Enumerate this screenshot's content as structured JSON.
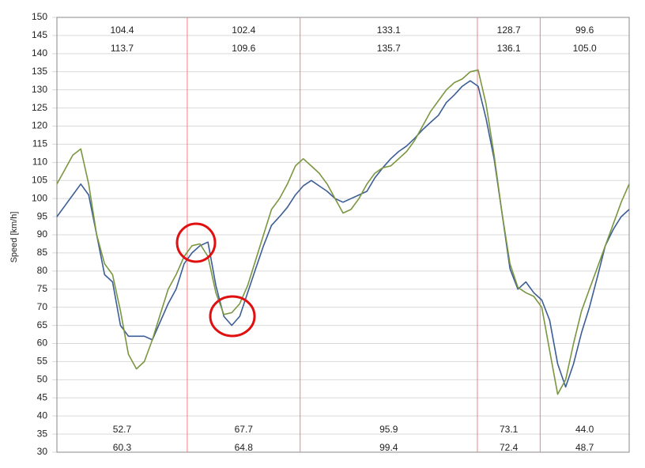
{
  "chart_data": {
    "type": "line",
    "y_label": "Speed [km/h]",
    "ylim": [
      30,
      150
    ],
    "yticks": [
      30,
      35,
      40,
      45,
      50,
      55,
      60,
      65,
      70,
      75,
      80,
      85,
      90,
      95,
      100,
      105,
      110,
      115,
      120,
      125,
      130,
      135,
      140,
      145,
      150
    ],
    "grid": true,
    "series": [
      {
        "color": "#3b5e96",
        "values": [
          95,
          98,
          101,
          104,
          101,
          90,
          79,
          77,
          65,
          62,
          62,
          62,
          61,
          66,
          71,
          75,
          82,
          85,
          87,
          88,
          76,
          67.5,
          65,
          67.5,
          74,
          80.6,
          87,
          92.6,
          95,
          97.6,
          101,
          103.5,
          105,
          103.5,
          102,
          100,
          99,
          100,
          101,
          102,
          105.7,
          108.5,
          111,
          113,
          114.5,
          116.6,
          119,
          121,
          123,
          126.5,
          128.6,
          131,
          132.5,
          131,
          122,
          111,
          96,
          80.6,
          75,
          77,
          74,
          72,
          66.4,
          54.4,
          48,
          54.4,
          63,
          70,
          78.4,
          87,
          91.5,
          95,
          97
        ]
      },
      {
        "color": "#7b9640",
        "values": [
          104,
          108,
          112,
          113.7,
          104,
          90,
          82,
          79,
          69,
          57,
          53,
          55,
          61,
          68,
          75,
          79,
          84,
          87,
          87.5,
          84,
          74,
          68,
          68.5,
          71,
          76,
          83,
          90,
          97,
          100,
          104,
          109,
          111,
          109,
          107,
          104,
          100,
          96,
          97,
          100,
          104,
          107,
          108.5,
          109,
          111,
          113,
          116,
          120,
          124,
          127,
          130,
          132,
          133,
          135,
          135.5,
          126,
          112,
          96,
          82,
          75.5,
          74,
          73,
          70,
          58,
          46,
          50,
          60,
          69,
          75,
          81,
          87,
          93,
          99,
          104
        ]
      }
    ],
    "section_bounds": [
      16.4,
      30.6,
      52.9,
      60.8
    ],
    "section_stats": [
      {
        "color": "#3b5e96",
        "values": [
          104.4,
          102.4,
          133.1,
          128.7,
          99.6
        ]
      },
      {
        "color": "#7b9640",
        "values": [
          113.7,
          109.6,
          135.7,
          136.1,
          105.0
        ],
        "value_labels": [
          "113.7",
          "109.6",
          "135.7",
          "136.1",
          "105.0"
        ]
      },
      {
        "color": "#7b9640",
        "values": [
          52.7,
          67.7,
          95.9,
          73.1,
          44.0
        ],
        "value_labels": [
          "52.7",
          "67.7",
          "95.9",
          "73.1",
          "44.0"
        ]
      },
      {
        "color": "#3b5e96",
        "values": [
          60.3,
          64.8,
          99.4,
          72.4,
          48.7
        ]
      }
    ]
  }
}
